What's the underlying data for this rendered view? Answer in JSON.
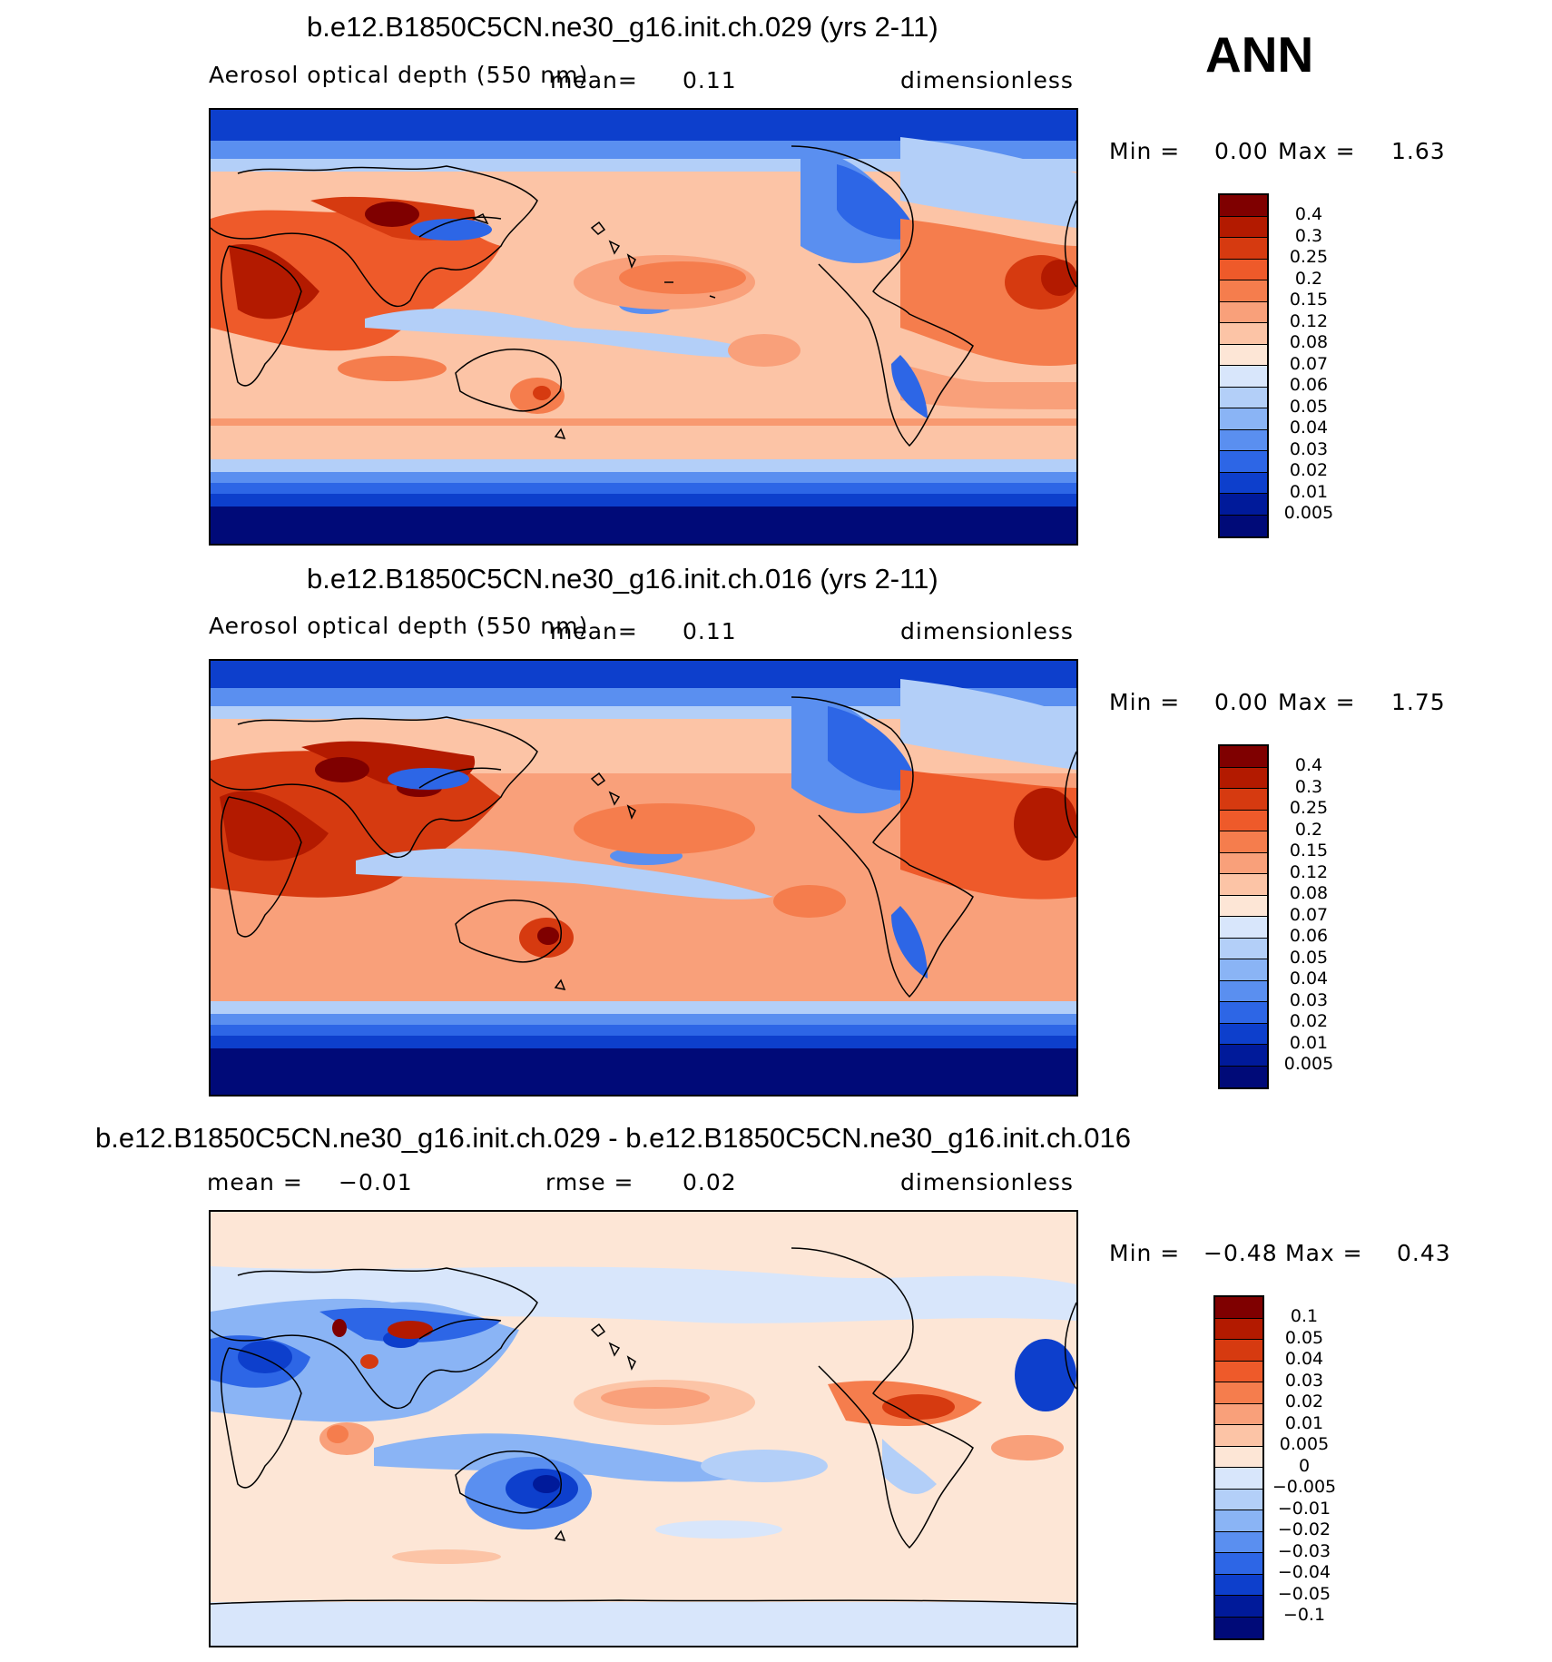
{
  "season": "ANN",
  "panels": [
    {
      "title": "b.e12.B1850C5CN.ne30_g16.init.ch.029 (yrs 2-11)",
      "left_label": "Aerosol optical depth (550 nm)",
      "center_label": "mean=",
      "center_value": "0.11",
      "units": "dimensionless",
      "min_label": "Min =",
      "min_value": "0.00",
      "max_label": "Max =",
      "max_value": "1.63",
      "colorbar_labels": [
        "0.4",
        "0.3",
        "0.25",
        "0.2",
        "0.15",
        "0.12",
        "0.08",
        "0.07",
        "0.06",
        "0.05",
        "0.04",
        "0.03",
        "0.02",
        "0.01",
        "0.005"
      ],
      "colorbar_colors": [
        "#7f0000",
        "#b31a00",
        "#d63a10",
        "#ee5a2a",
        "#f57d4d",
        "#f9a07a",
        "#fcc4a6",
        "#fde6d6",
        "#d8e6fb",
        "#b3cff8",
        "#8ab4f5",
        "#5a8ff0",
        "#2d66e6",
        "#0d3fcc",
        "#001a9a",
        "#000a78"
      ]
    },
    {
      "title": "b.e12.B1850C5CN.ne30_g16.init.ch.016 (yrs 2-11)",
      "left_label": "Aerosol optical depth (550 nm)",
      "center_label": "mean=",
      "center_value": "0.11",
      "units": "dimensionless",
      "min_label": "Min =",
      "min_value": "0.00",
      "max_label": "Max =",
      "max_value": "1.75",
      "colorbar_labels": [
        "0.4",
        "0.3",
        "0.25",
        "0.2",
        "0.15",
        "0.12",
        "0.08",
        "0.07",
        "0.06",
        "0.05",
        "0.04",
        "0.03",
        "0.02",
        "0.01",
        "0.005"
      ],
      "colorbar_colors": [
        "#7f0000",
        "#b31a00",
        "#d63a10",
        "#ee5a2a",
        "#f57d4d",
        "#f9a07a",
        "#fcc4a6",
        "#fde6d6",
        "#d8e6fb",
        "#b3cff8",
        "#8ab4f5",
        "#5a8ff0",
        "#2d66e6",
        "#0d3fcc",
        "#001a9a",
        "#000a78"
      ]
    },
    {
      "title": "b.e12.B1850C5CN.ne30_g16.init.ch.029 - b.e12.B1850C5CN.ne30_g16.init.ch.016",
      "left_label": "mean =",
      "left_value": "−0.01",
      "center_label": "rmse =",
      "center_value": "0.02",
      "units": "dimensionless",
      "min_label": "Min =",
      "min_value": "−0.48",
      "max_label": "Max =",
      "max_value": "0.43",
      "colorbar_labels": [
        "0.1",
        "0.05",
        "0.04",
        "0.03",
        "0.02",
        "0.01",
        "0.005",
        "0",
        "−0.005",
        "−0.01",
        "−0.02",
        "−0.03",
        "−0.04",
        "−0.05",
        "−0.1"
      ],
      "colorbar_colors": [
        "#7f0000",
        "#b31a00",
        "#d63a10",
        "#ee5a2a",
        "#f57d4d",
        "#f9a07a",
        "#fcc4a6",
        "#fde6d6",
        "#d8e6fb",
        "#b3cff8",
        "#8ab4f5",
        "#5a8ff0",
        "#2d66e6",
        "#0d3fcc",
        "#001a9a",
        "#000a78"
      ]
    }
  ]
}
